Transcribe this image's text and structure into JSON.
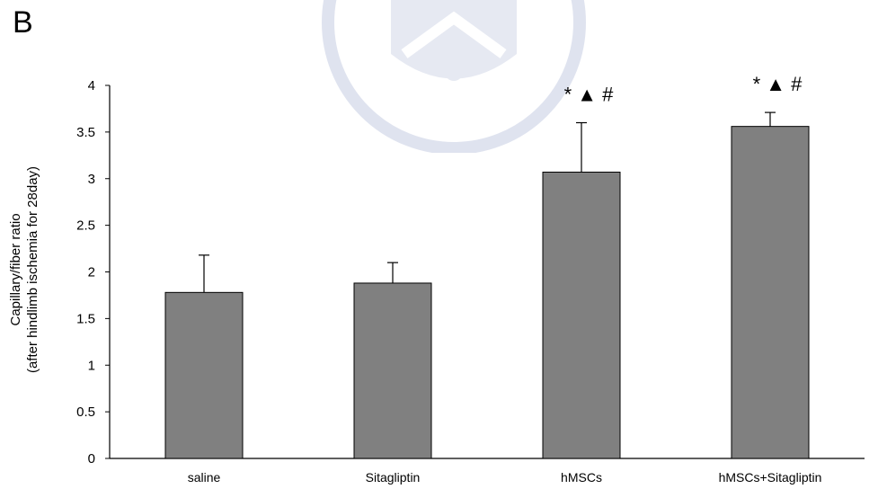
{
  "panel_label": "B",
  "chart_data": {
    "type": "bar",
    "categories": [
      "saline",
      "Sitagliptin",
      "hMSCs",
      "hMSCs+Sitagliptin"
    ],
    "values": [
      1.78,
      1.88,
      3.07,
      3.56
    ],
    "error_upper": [
      0.4,
      0.22,
      0.53,
      0.15
    ],
    "ylabel_line1": "Capillary/fiber  ratio",
    "ylabel_line2": "(after hindlimb ischemia for 28day)",
    "ylim": [
      0,
      4
    ],
    "yticks": [
      0,
      0.5,
      1,
      1.5,
      2,
      2.5,
      3,
      3.5,
      4
    ],
    "grid": false,
    "bar_color": "#808080",
    "annotations": [
      "",
      "",
      "* ▲ #",
      "* ▲ #"
    ]
  }
}
